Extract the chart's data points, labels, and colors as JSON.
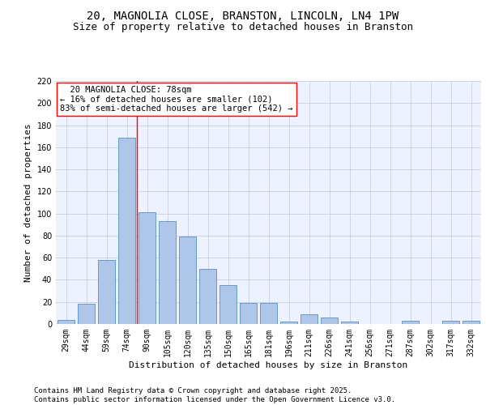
{
  "title_line1": "20, MAGNOLIA CLOSE, BRANSTON, LINCOLN, LN4 1PW",
  "title_line2": "Size of property relative to detached houses in Branston",
  "xlabel": "Distribution of detached houses by size in Branston",
  "ylabel": "Number of detached properties",
  "footer": "Contains HM Land Registry data © Crown copyright and database right 2025.\nContains public sector information licensed under the Open Government Licence v3.0.",
  "categories": [
    "29sqm",
    "44sqm",
    "59sqm",
    "74sqm",
    "90sqm",
    "105sqm",
    "120sqm",
    "135sqm",
    "150sqm",
    "165sqm",
    "181sqm",
    "196sqm",
    "211sqm",
    "226sqm",
    "241sqm",
    "256sqm",
    "271sqm",
    "287sqm",
    "302sqm",
    "317sqm",
    "332sqm"
  ],
  "values": [
    4,
    18,
    58,
    169,
    101,
    93,
    79,
    50,
    35,
    19,
    19,
    2,
    9,
    6,
    2,
    0,
    0,
    3,
    0,
    3,
    3
  ],
  "bar_color": "#aec6e8",
  "bar_edge_color": "#5a8fc2",
  "annotation_line1": "  20 MAGNOLIA CLOSE: 78sqm",
  "annotation_line2": "← 16% of detached houses are smaller (102)",
  "annotation_line3": "83% of semi-detached houses are larger (542) →",
  "red_line_x": 3.5,
  "ylim": [
    0,
    220
  ],
  "yticks": [
    0,
    20,
    40,
    60,
    80,
    100,
    120,
    140,
    160,
    180,
    200,
    220
  ],
  "background_color": "#eef2ff",
  "grid_color": "#c8d0e8",
  "title_fontsize": 10,
  "subtitle_fontsize": 9,
  "axis_label_fontsize": 8,
  "tick_fontsize": 7,
  "annotation_fontsize": 7.5,
  "footer_fontsize": 6.5
}
